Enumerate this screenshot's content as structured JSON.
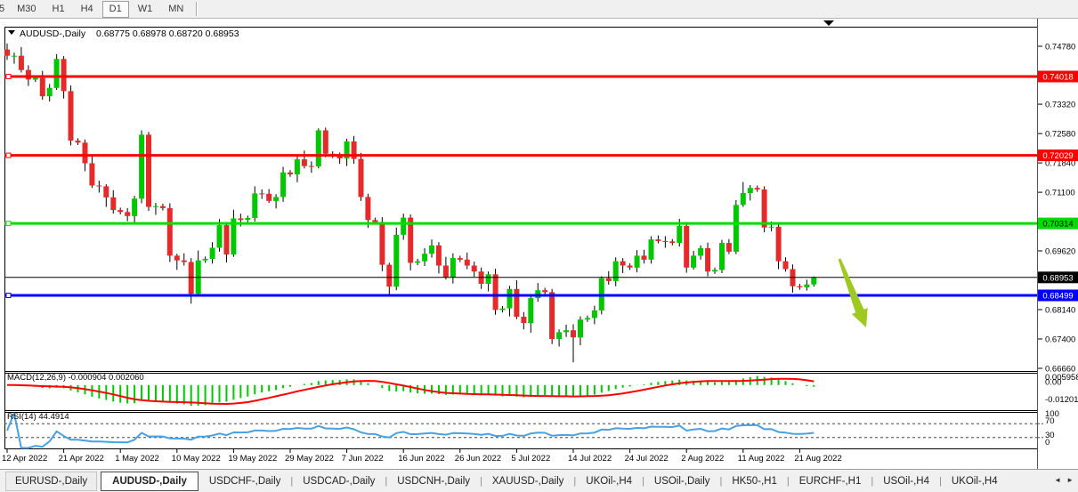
{
  "toolbar": {
    "timeframes": [
      {
        "label": "5",
        "active": false
      },
      {
        "label": "M30",
        "active": false
      },
      {
        "label": "H1",
        "active": false
      },
      {
        "label": "H4",
        "active": false
      },
      {
        "label": "D1",
        "active": true
      },
      {
        "label": "W1",
        "active": false
      },
      {
        "label": "MN",
        "active": false
      }
    ]
  },
  "chart": {
    "title_dropdown": "▼",
    "title_symbol": "AUDUSD-,Daily",
    "title_ohlc": "0.68775 0.68978 0.68720 0.68953",
    "scroll_marker": "▼"
  },
  "chart_data": {
    "type": "candlestick",
    "symbol": "AUDUSD",
    "timeframe": "Daily",
    "ohlc_current": {
      "open": 0.68775,
      "high": 0.68978,
      "low": 0.6872,
      "close": 0.68953
    },
    "y_axis": {
      "ticks": [
        "0.74780",
        "0.73320",
        "0.72580",
        "0.71840",
        "0.71100",
        "0.69620",
        "0.68140",
        "0.67400",
        "0.66660"
      ]
    },
    "x_axis": {
      "tick_labels": [
        "12 Apr 2022",
        "21 Apr 2022",
        "1 May 2022",
        "10 May 2022",
        "19 May 2022",
        "29 May 2022",
        "7 Jun 2022",
        "16 Jun 2022",
        "26 Jun 2022",
        "5 Jul 2022",
        "14 Jul 2022",
        "24 Jul 2022",
        "2 Aug 2022",
        "11 Aug 2022",
        "21 Aug 2022"
      ],
      "tick_bar_index": [
        0,
        8,
        16,
        24,
        32,
        40,
        48,
        56,
        64,
        72,
        80,
        88,
        96,
        104,
        112
      ]
    },
    "hlines": [
      {
        "price": 0.74018,
        "label": "0.74018",
        "color": "#FF0000",
        "text_color": "#FFFFFF",
        "width": 3
      },
      {
        "price": 0.72029,
        "label": "0.72029",
        "color": "#FF0000",
        "text_color": "#FFFFFF",
        "width": 3
      },
      {
        "price": 0.70314,
        "label": "0.70314",
        "color": "#00DC00",
        "text_color": "#000000",
        "width": 3
      },
      {
        "price": 0.68499,
        "label": "0.68499",
        "color": "#0000FF",
        "text_color": "#FFFFFF",
        "width": 3
      }
    ],
    "current_price": {
      "price": 0.68953,
      "label": "0.68953",
      "color": "#000000",
      "text_color": "#FFFFFF",
      "width": 1
    },
    "colors": {
      "up": "#00C800",
      "down": "#E42A2A",
      "wick": "#000000"
    },
    "candles": [
      [
        0.747,
        0.7485,
        0.7444,
        0.7454
      ],
      [
        0.7454,
        0.7462,
        0.7434,
        0.7454
      ],
      [
        0.7454,
        0.7476,
        0.7412,
        0.7418
      ],
      [
        0.7418,
        0.743,
        0.7378,
        0.7394
      ],
      [
        0.7394,
        0.7404,
        0.7388,
        0.7398
      ],
      [
        0.7398,
        0.7416,
        0.7343,
        0.7352
      ],
      [
        0.7352,
        0.7383,
        0.7339,
        0.7373
      ],
      [
        0.7373,
        0.7458,
        0.7368,
        0.7446
      ],
      [
        0.7446,
        0.7453,
        0.7346,
        0.7365
      ],
      [
        0.7365,
        0.7379,
        0.7228,
        0.724
      ],
      [
        0.724,
        0.7246,
        0.7229,
        0.7235
      ],
      [
        0.7235,
        0.7243,
        0.7163,
        0.7183
      ],
      [
        0.7183,
        0.7205,
        0.7121,
        0.7127
      ],
      [
        0.7127,
        0.7139,
        0.7109,
        0.7125
      ],
      [
        0.7125,
        0.713,
        0.7073,
        0.7097
      ],
      [
        0.7097,
        0.7115,
        0.7056,
        0.7065
      ],
      [
        0.7065,
        0.7071,
        0.7054,
        0.706
      ],
      [
        0.706,
        0.707,
        0.7037,
        0.705
      ],
      [
        0.705,
        0.7101,
        0.7031,
        0.7094
      ],
      [
        0.7094,
        0.7266,
        0.7082,
        0.7255
      ],
      [
        0.7255,
        0.7262,
        0.7063,
        0.7073
      ],
      [
        0.7073,
        0.7083,
        0.7053,
        0.7075
      ],
      [
        0.7075,
        0.7081,
        0.7064,
        0.707
      ],
      [
        0.707,
        0.7082,
        0.6934,
        0.695
      ],
      [
        0.695,
        0.6955,
        0.6914,
        0.6938
      ],
      [
        0.6938,
        0.6956,
        0.6925,
        0.6934
      ],
      [
        0.6934,
        0.6944,
        0.6829,
        0.6854
      ],
      [
        0.6854,
        0.6963,
        0.6849,
        0.6938
      ],
      [
        0.6938,
        0.6948,
        0.6932,
        0.6942
      ],
      [
        0.6942,
        0.6984,
        0.693,
        0.697
      ],
      [
        0.697,
        0.7042,
        0.696,
        0.7027
      ],
      [
        0.7027,
        0.7035,
        0.6933,
        0.6953
      ],
      [
        0.6953,
        0.7066,
        0.6947,
        0.7044
      ],
      [
        0.7044,
        0.7056,
        0.7024,
        0.704
      ],
      [
        0.704,
        0.7051,
        0.7034,
        0.7045
      ],
      [
        0.7045,
        0.7125,
        0.7036,
        0.7107
      ],
      [
        0.7107,
        0.7117,
        0.7093,
        0.7106
      ],
      [
        0.7106,
        0.7118,
        0.7083,
        0.7088
      ],
      [
        0.7088,
        0.7105,
        0.7069,
        0.7098
      ],
      [
        0.7098,
        0.7174,
        0.7086,
        0.716
      ],
      [
        0.716,
        0.7166,
        0.7149,
        0.7155
      ],
      [
        0.7155,
        0.7201,
        0.7135,
        0.7193
      ],
      [
        0.7193,
        0.7215,
        0.717,
        0.7176
      ],
      [
        0.7176,
        0.7188,
        0.7159,
        0.7175
      ],
      [
        0.7175,
        0.7271,
        0.717,
        0.7266
      ],
      [
        0.7266,
        0.7273,
        0.7198,
        0.7207
      ],
      [
        0.7207,
        0.7213,
        0.7196,
        0.7202
      ],
      [
        0.7202,
        0.721,
        0.7182,
        0.7195
      ],
      [
        0.7195,
        0.7245,
        0.7176,
        0.7238
      ],
      [
        0.7238,
        0.7252,
        0.7182,
        0.7194
      ],
      [
        0.7194,
        0.7209,
        0.7088,
        0.7098
      ],
      [
        0.7098,
        0.7106,
        0.702,
        0.704
      ],
      [
        0.704,
        0.7046,
        0.7029,
        0.7035
      ],
      [
        0.7035,
        0.7047,
        0.6911,
        0.6927
      ],
      [
        0.6927,
        0.6932,
        0.6848,
        0.6872
      ],
      [
        0.6872,
        0.7021,
        0.6863,
        0.7003
      ],
      [
        0.7003,
        0.7056,
        0.699,
        0.7046
      ],
      [
        0.7046,
        0.7054,
        0.6913,
        0.6932
      ],
      [
        0.6932,
        0.6942,
        0.6926,
        0.6936
      ],
      [
        0.6936,
        0.6969,
        0.6924,
        0.6955
      ],
      [
        0.6955,
        0.6991,
        0.6945,
        0.6976
      ],
      [
        0.6976,
        0.6984,
        0.6905,
        0.6925
      ],
      [
        0.6925,
        0.6947,
        0.689,
        0.6896
      ],
      [
        0.6896,
        0.6956,
        0.688,
        0.6944
      ],
      [
        0.6944,
        0.695,
        0.6934,
        0.694
      ],
      [
        0.694,
        0.6958,
        0.6916,
        0.6925
      ],
      [
        0.6925,
        0.6935,
        0.6897,
        0.691
      ],
      [
        0.691,
        0.692,
        0.6866,
        0.6879
      ],
      [
        0.6879,
        0.691,
        0.686,
        0.6903
      ],
      [
        0.6903,
        0.6917,
        0.6801,
        0.6813
      ],
      [
        0.6813,
        0.6823,
        0.6807,
        0.6817
      ],
      [
        0.6817,
        0.6874,
        0.6797,
        0.6866
      ],
      [
        0.6866,
        0.6888,
        0.679,
        0.6796
      ],
      [
        0.6796,
        0.6808,
        0.6764,
        0.678
      ],
      [
        0.678,
        0.6848,
        0.6756,
        0.6843
      ],
      [
        0.6843,
        0.6881,
        0.6834,
        0.6863
      ],
      [
        0.6863,
        0.6869,
        0.6852,
        0.6858
      ],
      [
        0.6858,
        0.6866,
        0.6727,
        0.674
      ],
      [
        0.674,
        0.6764,
        0.6721,
        0.6757
      ],
      [
        0.6757,
        0.6776,
        0.6745,
        0.6762
      ],
      [
        0.6762,
        0.6777,
        0.6681,
        0.6744
      ],
      [
        0.6744,
        0.6797,
        0.6724,
        0.6789
      ],
      [
        0.6789,
        0.6799,
        0.6783,
        0.6793
      ],
      [
        0.6793,
        0.6824,
        0.6777,
        0.6812
      ],
      [
        0.6812,
        0.6898,
        0.6802,
        0.6893
      ],
      [
        0.6893,
        0.6911,
        0.6877,
        0.6886
      ],
      [
        0.6886,
        0.6946,
        0.6873,
        0.6936
      ],
      [
        0.6936,
        0.6944,
        0.6906,
        0.6925
      ],
      [
        0.6925,
        0.6931,
        0.6914,
        0.692
      ],
      [
        0.692,
        0.6964,
        0.6908,
        0.695
      ],
      [
        0.695,
        0.6965,
        0.693,
        0.694
      ],
      [
        0.694,
        0.6999,
        0.693,
        0.6991
      ],
      [
        0.6991,
        0.7001,
        0.6981,
        0.6987
      ],
      [
        0.6987,
        0.6999,
        0.697,
        0.6986
      ],
      [
        0.6986,
        0.6992,
        0.6976,
        0.6982
      ],
      [
        0.6982,
        0.7043,
        0.6973,
        0.7025
      ],
      [
        0.7025,
        0.7035,
        0.6907,
        0.692
      ],
      [
        0.692,
        0.6962,
        0.6915,
        0.695
      ],
      [
        0.695,
        0.6976,
        0.694,
        0.6969
      ],
      [
        0.6969,
        0.6983,
        0.6898,
        0.691
      ],
      [
        0.691,
        0.692,
        0.6904,
        0.6914
      ],
      [
        0.6914,
        0.699,
        0.6906,
        0.6982
      ],
      [
        0.6982,
        0.6992,
        0.6954,
        0.696
      ],
      [
        0.696,
        0.709,
        0.6954,
        0.7078
      ],
      [
        0.7078,
        0.7136,
        0.7073,
        0.7108
      ],
      [
        0.7108,
        0.7128,
        0.7089,
        0.7121
      ],
      [
        0.7121,
        0.7127,
        0.7111,
        0.7117
      ],
      [
        0.7117,
        0.7125,
        0.7009,
        0.7021
      ],
      [
        0.7021,
        0.7036,
        0.7011,
        0.7023
      ],
      [
        0.7023,
        0.7031,
        0.6916,
        0.6936
      ],
      [
        0.6936,
        0.6946,
        0.691,
        0.6916
      ],
      [
        0.6916,
        0.6928,
        0.6857,
        0.6873
      ],
      [
        0.6873,
        0.6879,
        0.6864,
        0.687
      ],
      [
        0.687,
        0.68895,
        0.6862,
        0.68775
      ],
      [
        0.68775,
        0.68978,
        0.6872,
        0.68953
      ]
    ],
    "macd": {
      "label": "MACD(12,26,9) -0.000904 0.002060",
      "fast": 12,
      "slow": 26,
      "signal": 9,
      "scale_max": 0.005958,
      "scale_min": -0.012015,
      "axis_labels": [
        "0.005958",
        "0.00",
        "-0.012015"
      ],
      "hist_color": "#00C800",
      "signal_color": "#FF0000"
    },
    "rsi": {
      "label": "RSI(14) 44.4914",
      "period": 14,
      "levels": [
        70,
        30
      ],
      "axis_labels": [
        "100",
        "70",
        "30",
        "0"
      ],
      "line_color": "#4AA0E0"
    },
    "annotation_arrow": {
      "color": "#9FC820",
      "from": [
        943,
        291
      ],
      "to": [
        973,
        368
      ]
    }
  },
  "tabs": {
    "items": [
      {
        "label": "EURUSD-,Daily",
        "active": false
      },
      {
        "label": "AUDUSD-,Daily",
        "active": true
      },
      {
        "label": "USDCHF-,Daily",
        "active": false
      },
      {
        "label": "USDCAD-,Daily",
        "active": false
      },
      {
        "label": "USDCNH-,Daily",
        "active": false
      },
      {
        "label": "XAUUSD-,Daily",
        "active": false
      },
      {
        "label": "UKOil-,H4",
        "active": false
      },
      {
        "label": "USOil-,Daily",
        "active": false
      },
      {
        "label": "HK50-,H1",
        "active": false
      },
      {
        "label": "EURCHF-,H1",
        "active": false
      },
      {
        "label": "USOil-,H4",
        "active": false
      },
      {
        "label": "UKOil-,H4",
        "active": false
      }
    ],
    "scroll_left": "◄",
    "scroll_right": "►"
  }
}
